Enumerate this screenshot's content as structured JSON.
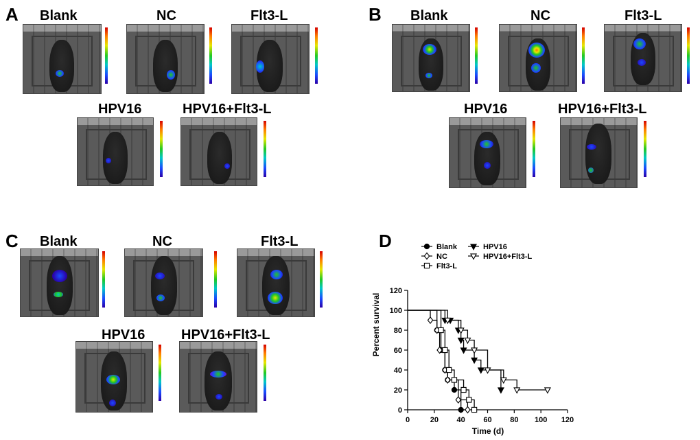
{
  "panels": {
    "A": {
      "label": "A",
      "titles": [
        "Blank",
        "NC",
        "Flt3-L",
        "HPV16",
        "HPV16+Flt3-L"
      ]
    },
    "B": {
      "label": "B",
      "titles": [
        "Blank",
        "NC",
        "Flt3-L",
        "HPV16",
        "HPV16+Flt3-L"
      ]
    },
    "C": {
      "label": "C",
      "titles": [
        "Blank",
        "NC",
        "Flt3-L",
        "HPV16",
        "HPV16+Flt3-L"
      ]
    },
    "D": {
      "label": "D"
    }
  },
  "colors": {
    "scale_top": "#d40000",
    "scale_bottom": "#2a00a8",
    "signal": "#1a4bff"
  },
  "chart_data": {
    "type": "line",
    "step": true,
    "xlabel": "Time (d)",
    "ylabel": "Percent survival",
    "xlim": [
      0,
      120
    ],
    "ylim": [
      0,
      120
    ],
    "xticks": [
      0,
      20,
      40,
      60,
      80,
      100,
      120
    ],
    "yticks": [
      0,
      20,
      40,
      60,
      80,
      100,
      120
    ],
    "legend": [
      "Blank",
      "NC",
      "Flt3-L",
      "HPV16",
      "HPV16+Flt3-L"
    ],
    "series": [
      {
        "name": "Blank",
        "marker": "circle-filled",
        "x": [
          0,
          22,
          25,
          28,
          30,
          35,
          40
        ],
        "y": [
          100,
          80,
          60,
          40,
          30,
          20,
          0
        ]
      },
      {
        "name": "NC",
        "marker": "diamond-open",
        "x": [
          0,
          17,
          22,
          24,
          28,
          30,
          38,
          45
        ],
        "y": [
          100,
          90,
          80,
          60,
          40,
          30,
          10,
          0
        ]
      },
      {
        "name": "Flt3-L",
        "marker": "square-open",
        "x": [
          0,
          25,
          28,
          31,
          35,
          42,
          46,
          50
        ],
        "y": [
          100,
          80,
          60,
          40,
          30,
          20,
          10,
          0
        ]
      },
      {
        "name": "HPV16",
        "marker": "triangle-down-filled",
        "x": [
          0,
          28,
          32,
          38,
          40,
          42,
          50,
          55,
          70
        ],
        "y": [
          100,
          90,
          90,
          80,
          70,
          60,
          50,
          40,
          20
        ]
      },
      {
        "name": "HPV16+Flt3-L",
        "marker": "triangle-down-open",
        "x": [
          0,
          30,
          40,
          45,
          50,
          60,
          72,
          82,
          105
        ],
        "y": [
          100,
          90,
          80,
          70,
          60,
          40,
          30,
          20,
          20
        ]
      }
    ]
  }
}
